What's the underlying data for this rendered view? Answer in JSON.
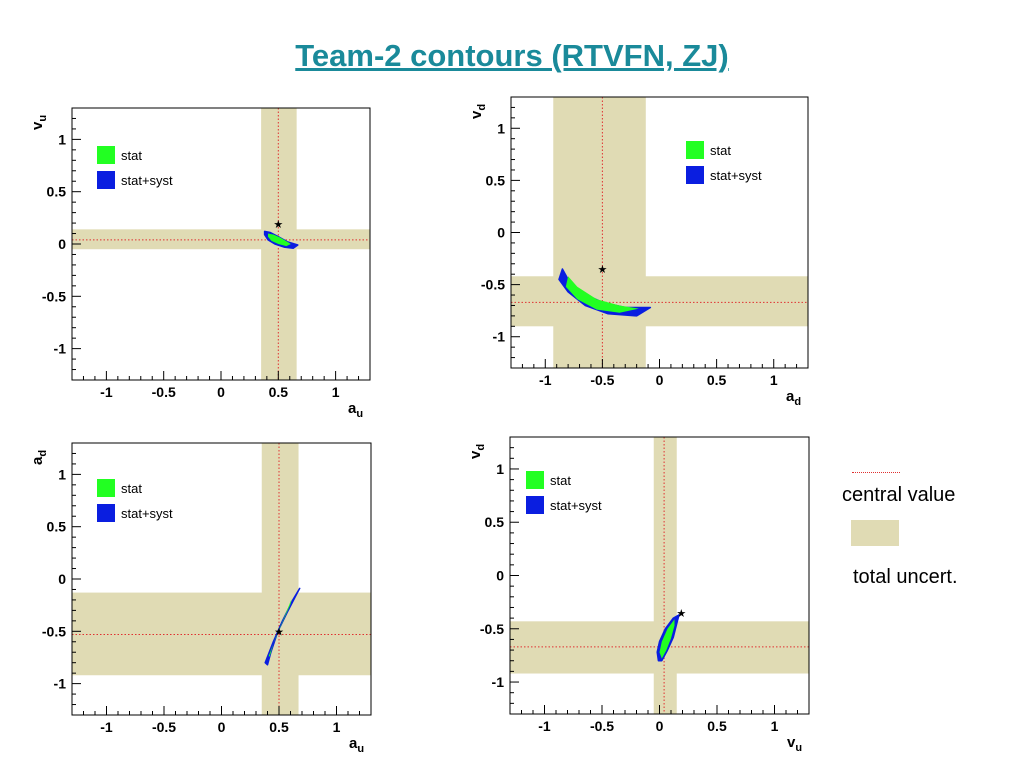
{
  "title": "Team-2 contours (RTVFN, ZJ)",
  "colors": {
    "title": "#1a8a9a",
    "band": "#e0dbb4",
    "stat": "#22ff22",
    "statsyst": "#0a1ee0",
    "central": "#e03030"
  },
  "side_legend": {
    "central_value": "central value",
    "total_uncert": "total uncert."
  },
  "chart_data": [
    {
      "type": "contour",
      "x_var": "a",
      "x_sub": "u",
      "y_var": "v",
      "y_sub": "u",
      "xlim": [
        -1.3,
        1.3
      ],
      "ylim": [
        -1.3,
        1.3
      ],
      "xticks": [
        -1,
        -0.5,
        0,
        0.5,
        1
      ],
      "yticks": [
        -1,
        -0.5,
        0,
        0.5,
        1
      ],
      "legend": [
        "stat",
        "stat+syst"
      ],
      "central": {
        "x": 0.5,
        "y": 0.04
      },
      "band_x": [
        0.35,
        0.66
      ],
      "band_y": [
        -0.05,
        0.14
      ],
      "star": {
        "x": 0.5,
        "y": 0.19
      },
      "contour_statsyst": [
        [
          0.38,
          0.12
        ],
        [
          0.43,
          0.11
        ],
        [
          0.5,
          0.07
        ],
        [
          0.58,
          0.02
        ],
        [
          0.67,
          -0.01
        ],
        [
          0.63,
          -0.04
        ],
        [
          0.55,
          -0.03
        ],
        [
          0.47,
          0.0
        ],
        [
          0.41,
          0.04
        ],
        [
          0.38,
          0.09
        ]
      ],
      "contour_stat": [
        [
          0.41,
          0.1
        ],
        [
          0.46,
          0.09
        ],
        [
          0.52,
          0.06
        ],
        [
          0.58,
          0.02
        ],
        [
          0.61,
          0.0
        ],
        [
          0.57,
          -0.02
        ],
        [
          0.5,
          0.0
        ],
        [
          0.44,
          0.03
        ],
        [
          0.41,
          0.07
        ]
      ]
    },
    {
      "type": "contour",
      "x_var": "a",
      "x_sub": "d",
      "y_var": "v",
      "y_sub": "d",
      "xlim": [
        -1.3,
        1.3
      ],
      "ylim": [
        -1.3,
        1.3
      ],
      "xticks": [
        -1,
        -0.5,
        0,
        0.5,
        1
      ],
      "yticks": [
        -1,
        -0.5,
        0,
        0.5,
        1
      ],
      "legend": [
        "stat",
        "stat+syst"
      ],
      "central": {
        "x": -0.5,
        "y": -0.67
      },
      "band_x": [
        -0.93,
        -0.12
      ],
      "band_y": [
        -0.9,
        -0.42
      ],
      "star": {
        "x": -0.5,
        "y": -0.35
      },
      "contour_statsyst": [
        [
          -0.85,
          -0.35
        ],
        [
          -0.8,
          -0.45
        ],
        [
          -0.7,
          -0.57
        ],
        [
          -0.5,
          -0.67
        ],
        [
          -0.3,
          -0.72
        ],
        [
          -0.08,
          -0.72
        ],
        [
          -0.2,
          -0.8
        ],
        [
          -0.45,
          -0.78
        ],
        [
          -0.65,
          -0.7
        ],
        [
          -0.8,
          -0.57
        ],
        [
          -0.88,
          -0.45
        ]
      ],
      "contour_stat": [
        [
          -0.8,
          -0.42
        ],
        [
          -0.72,
          -0.52
        ],
        [
          -0.55,
          -0.64
        ],
        [
          -0.35,
          -0.7
        ],
        [
          -0.18,
          -0.73
        ],
        [
          -0.35,
          -0.77
        ],
        [
          -0.55,
          -0.74
        ],
        [
          -0.72,
          -0.64
        ],
        [
          -0.82,
          -0.52
        ]
      ]
    },
    {
      "type": "contour",
      "x_var": "a",
      "x_sub": "u",
      "y_var": "a",
      "y_sub": "d",
      "xlim": [
        -1.3,
        1.3
      ],
      "ylim": [
        -1.3,
        1.3
      ],
      "xticks": [
        -1,
        -0.5,
        0,
        0.5,
        1
      ],
      "yticks": [
        -1,
        -0.5,
        0,
        0.5,
        1
      ],
      "legend": [
        "stat",
        "stat+syst"
      ],
      "central": {
        "x": 0.5,
        "y": -0.53
      },
      "band_x": [
        0.35,
        0.67
      ],
      "band_y": [
        -0.92,
        -0.13
      ],
      "star": {
        "x": 0.5,
        "y": -0.5
      },
      "contour_statsyst": [
        [
          0.38,
          -0.8
        ],
        [
          0.45,
          -0.6
        ],
        [
          0.53,
          -0.4
        ],
        [
          0.62,
          -0.2
        ],
        [
          0.68,
          -0.09
        ],
        [
          0.66,
          -0.13
        ],
        [
          0.57,
          -0.32
        ],
        [
          0.49,
          -0.5
        ],
        [
          0.43,
          -0.7
        ],
        [
          0.4,
          -0.82
        ]
      ],
      "contour_stat": [
        [
          0.41,
          -0.74
        ],
        [
          0.47,
          -0.56
        ],
        [
          0.54,
          -0.38
        ],
        [
          0.61,
          -0.19
        ],
        [
          0.6,
          -0.24
        ],
        [
          0.52,
          -0.44
        ],
        [
          0.45,
          -0.62
        ],
        [
          0.42,
          -0.74
        ]
      ]
    },
    {
      "type": "contour",
      "x_var": "v",
      "x_sub": "u",
      "y_var": "v",
      "y_sub": "d",
      "xlim": [
        -1.3,
        1.3
      ],
      "ylim": [
        -1.3,
        1.3
      ],
      "xticks": [
        -1,
        -0.5,
        0,
        0.5,
        1
      ],
      "yticks": [
        -1,
        -0.5,
        0,
        0.5,
        1
      ],
      "legend": [
        "stat",
        "stat+syst"
      ],
      "central": {
        "x": 0.04,
        "y": -0.67
      },
      "band_x": [
        -0.05,
        0.15
      ],
      "band_y": [
        -0.92,
        -0.43
      ],
      "star": {
        "x": 0.19,
        "y": -0.35
      },
      "contour_statsyst": [
        [
          -0.02,
          -0.72
        ],
        [
          0.0,
          -0.62
        ],
        [
          0.05,
          -0.5
        ],
        [
          0.12,
          -0.4
        ],
        [
          0.17,
          -0.37
        ],
        [
          0.15,
          -0.45
        ],
        [
          0.12,
          -0.58
        ],
        [
          0.07,
          -0.7
        ],
        [
          0.02,
          -0.8
        ],
        [
          -0.01,
          -0.8
        ]
      ],
      "contour_stat": [
        [
          0.0,
          -0.72
        ],
        [
          0.02,
          -0.62
        ],
        [
          0.07,
          -0.5
        ],
        [
          0.13,
          -0.41
        ],
        [
          0.13,
          -0.47
        ],
        [
          0.1,
          -0.59
        ],
        [
          0.06,
          -0.7
        ],
        [
          0.02,
          -0.78
        ]
      ]
    }
  ]
}
